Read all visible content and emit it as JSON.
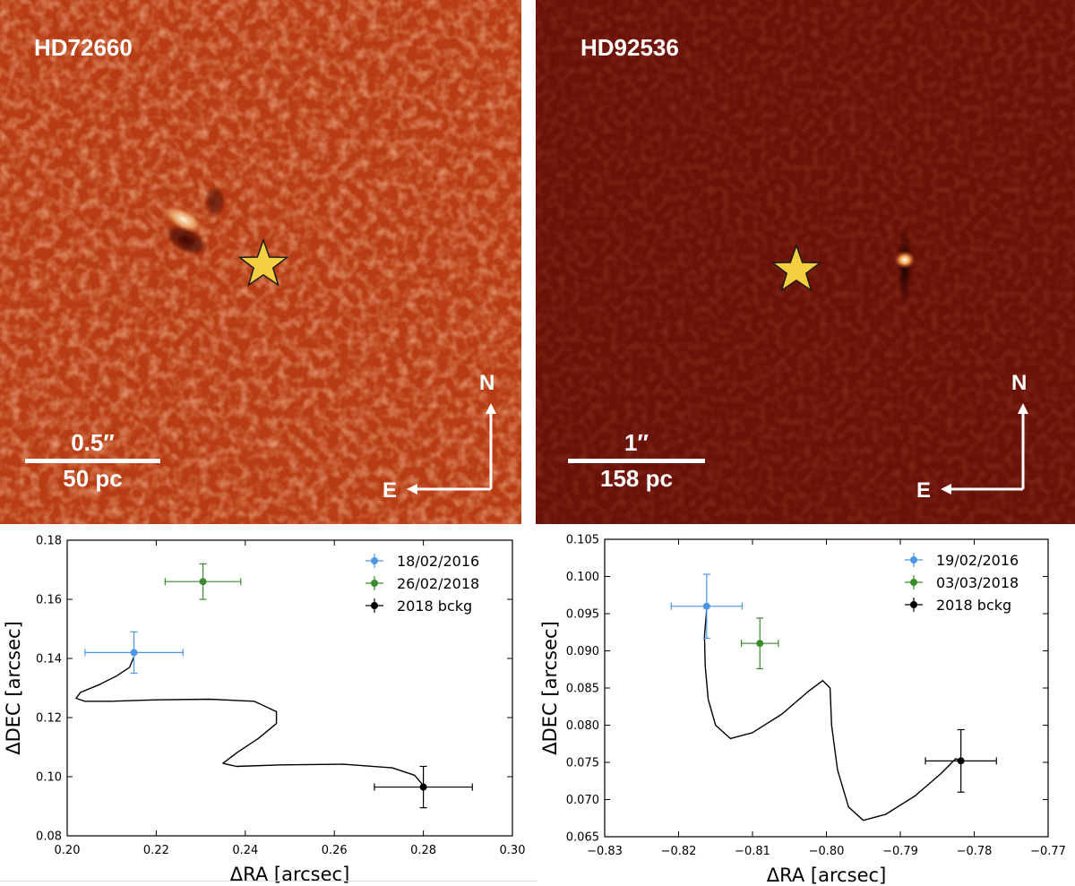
{
  "images": [
    {
      "id": "left",
      "title": "HD72660",
      "scale_top": "0.5″",
      "scale_bottom": "50 pc",
      "compass_n": "N",
      "compass_e": "E",
      "background_color": "#b83d14"
    },
    {
      "id": "right",
      "title": "HD92536",
      "scale_top": "1″",
      "scale_bottom": "158 pc",
      "compass_n": "N",
      "compass_e": "E",
      "background_color": "#6a1208"
    }
  ],
  "colors": {
    "star": "#f5cf3f",
    "blue": "#4c96e8",
    "green": "#3b8a2e",
    "black": "#000000"
  },
  "chart_data": [
    {
      "type": "scatter",
      "title": "",
      "xlabel": "ΔRA [arcsec]",
      "ylabel": "ΔDEC [arcsec]",
      "xlim": [
        0.2,
        0.3
      ],
      "ylim": [
        0.08,
        0.18
      ],
      "xticks": [
        "0.20",
        "0.22",
        "0.24",
        "0.26",
        "0.28",
        "0.30"
      ],
      "xtick_values": [
        0.2,
        0.22,
        0.24,
        0.26,
        0.28,
        0.3
      ],
      "yticks": [
        "0.08",
        "0.10",
        "0.12",
        "0.14",
        "0.16",
        "0.18"
      ],
      "ytick_values": [
        0.08,
        0.1,
        0.12,
        0.14,
        0.16,
        0.18
      ],
      "legend_position": "top-right",
      "series": [
        {
          "name": "18/02/2016",
          "color": "#4c96e8",
          "x": 0.215,
          "y": 0.142,
          "xerr": 0.011,
          "yerr": 0.007
        },
        {
          "name": "26/02/2018",
          "color": "#3b8a2e",
          "x": 0.2305,
          "y": 0.166,
          "xerr": 0.0085,
          "yerr": 0.006
        },
        {
          "name": "2018 bckg",
          "color": "#000000",
          "x": 0.28,
          "y": 0.0965,
          "xerr": 0.011,
          "yerr": 0.007
        }
      ],
      "track": [
        [
          0.215,
          0.1405
        ],
        [
          0.214,
          0.137
        ],
        [
          0.211,
          0.134
        ],
        [
          0.207,
          0.131
        ],
        [
          0.203,
          0.1285
        ],
        [
          0.202,
          0.1265
        ],
        [
          0.204,
          0.1255
        ],
        [
          0.21,
          0.1255
        ],
        [
          0.22,
          0.126
        ],
        [
          0.232,
          0.1262
        ],
        [
          0.242,
          0.1255
        ],
        [
          0.247,
          0.122
        ],
        [
          0.247,
          0.118
        ],
        [
          0.243,
          0.113
        ],
        [
          0.238,
          0.108
        ],
        [
          0.235,
          0.1045
        ],
        [
          0.238,
          0.1035
        ],
        [
          0.248,
          0.104
        ],
        [
          0.262,
          0.1042
        ],
        [
          0.273,
          0.103
        ],
        [
          0.278,
          0.1005
        ],
        [
          0.28,
          0.097
        ]
      ]
    },
    {
      "type": "scatter",
      "title": "",
      "xlabel": "ΔRA [arcsec]",
      "ylabel": "ΔDEC [arcsec]",
      "xlim": [
        -0.83,
        -0.77
      ],
      "ylim": [
        0.065,
        0.105
      ],
      "xticks": [
        "−0.83",
        "−0.82",
        "−0.81",
        "−0.80",
        "−0.79",
        "−0.78",
        "−0.77"
      ],
      "xtick_values": [
        -0.83,
        -0.82,
        -0.81,
        -0.8,
        -0.79,
        -0.78,
        -0.77
      ],
      "yticks": [
        "0.065",
        "0.070",
        "0.075",
        "0.080",
        "0.085",
        "0.090",
        "0.095",
        "0.100",
        "0.105"
      ],
      "ytick_values": [
        0.065,
        0.07,
        0.075,
        0.08,
        0.085,
        0.09,
        0.095,
        0.1,
        0.105
      ],
      "legend_position": "top-right",
      "series": [
        {
          "name": "19/02/2016",
          "color": "#4c96e8",
          "x": -0.8162,
          "y": 0.096,
          "xerr": 0.0048,
          "yerr": 0.0043
        },
        {
          "name": "03/03/2018",
          "color": "#3b8a2e",
          "x": -0.809,
          "y": 0.091,
          "xerr": 0.0025,
          "yerr": 0.0034
        },
        {
          "name": "2018 bckg",
          "color": "#000000",
          "x": -0.7818,
          "y": 0.0752,
          "xerr": 0.0048,
          "yerr": 0.0042
        }
      ],
      "track": [
        [
          -0.8162,
          0.0955
        ],
        [
          -0.8165,
          0.092
        ],
        [
          -0.8164,
          0.088
        ],
        [
          -0.816,
          0.0835
        ],
        [
          -0.815,
          0.08
        ],
        [
          -0.813,
          0.0782
        ],
        [
          -0.81,
          0.079
        ],
        [
          -0.806,
          0.0815
        ],
        [
          -0.8025,
          0.0845
        ],
        [
          -0.8005,
          0.086
        ],
        [
          -0.7995,
          0.085
        ],
        [
          -0.7993,
          0.08
        ],
        [
          -0.7985,
          0.074
        ],
        [
          -0.797,
          0.069
        ],
        [
          -0.795,
          0.0672
        ],
        [
          -0.792,
          0.068
        ],
        [
          -0.788,
          0.0705
        ],
        [
          -0.7845,
          0.0735
        ],
        [
          -0.7825,
          0.0755
        ],
        [
          -0.7818,
          0.0752
        ]
      ]
    }
  ]
}
